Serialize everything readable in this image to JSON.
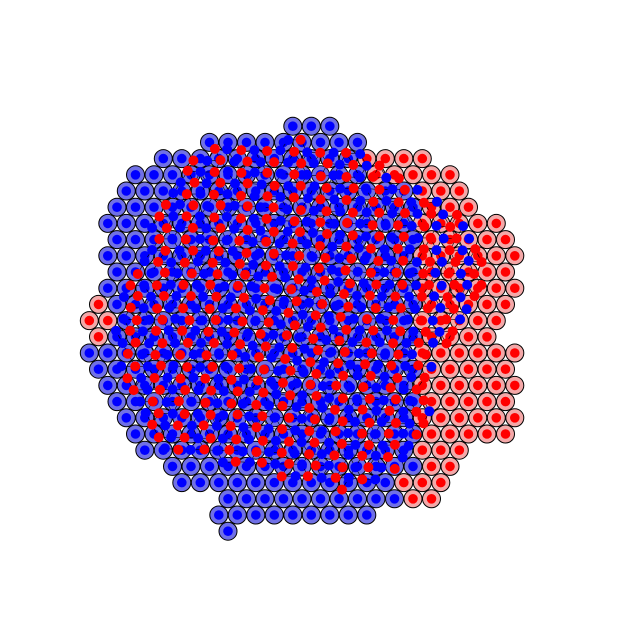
{
  "figure": {
    "kind": "particle-packing-simulation",
    "species": [
      {
        "id": "blue",
        "disc_fill": "#7070e6",
        "dot_fill": "#0000ff"
      },
      {
        "id": "red",
        "disc_fill": "#f4a8a8",
        "dot_fill": "#ff0000"
      }
    ],
    "outline_color": "#000000",
    "background": "#ffffff"
  }
}
